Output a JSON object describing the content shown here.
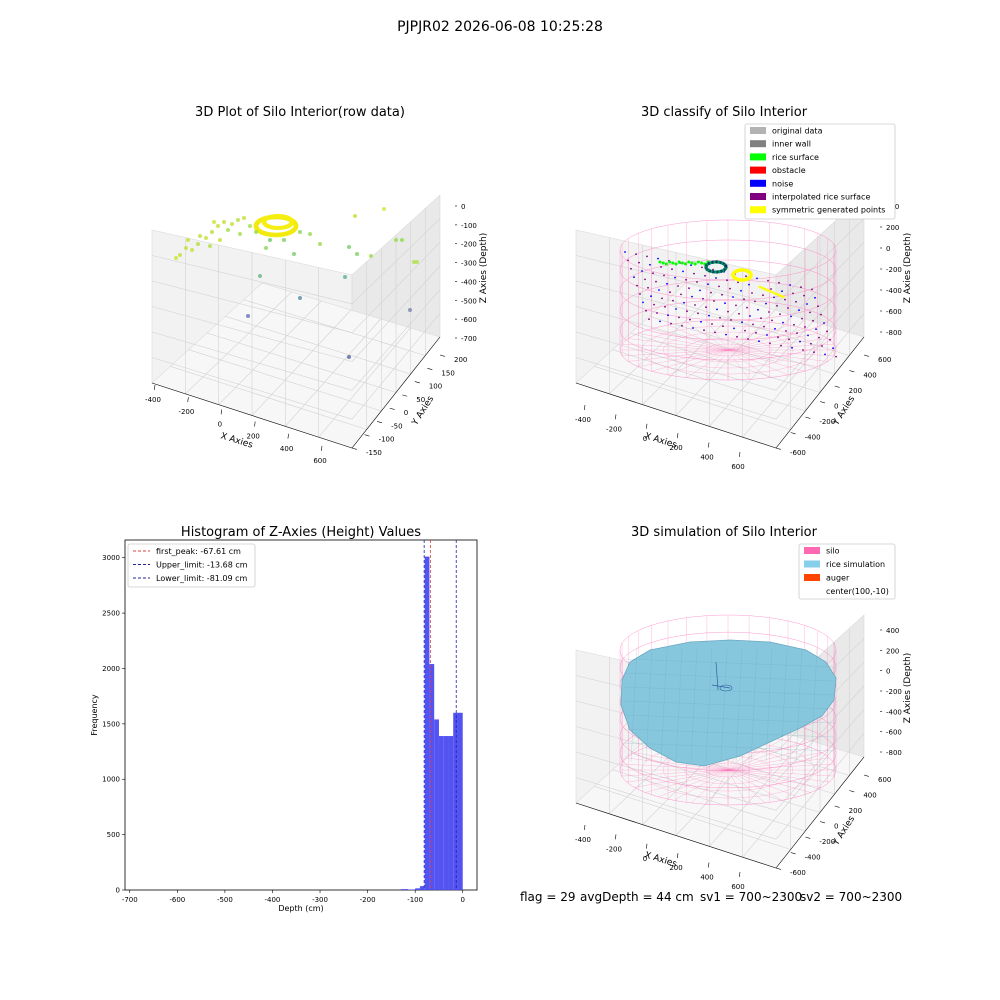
{
  "suptitle": "PJPJR02 2026-06-08 10:25:28",
  "chart_data": [
    {
      "type": "scatter",
      "title": "3D Plot of Silo Interior(row data)",
      "xlabel": "X Axies",
      "ylabel": "Y Axies",
      "zlabel": "Z Axies (Depth)",
      "xticks": [
        "-400",
        "-200",
        "0",
        "200",
        "400",
        "600"
      ],
      "yticks": [
        "-150",
        "-100",
        "-50",
        "0",
        "50",
        "100",
        "150",
        "200"
      ],
      "zticks": [
        "0",
        "-100",
        "-200",
        "-300",
        "-400",
        "-500",
        "-600",
        "-700"
      ],
      "grid": true
    },
    {
      "type": "scatter",
      "title": "3D classify of Silo Interior",
      "xlabel": "X Axies",
      "ylabel": "Y Axies",
      "zlabel": "Z Axies (Depth)",
      "xticks": [
        "-400",
        "-200",
        "0",
        "200",
        "400",
        "600"
      ],
      "yticks": [
        "-600",
        "-400",
        "-200",
        "0",
        "200",
        "400",
        "600"
      ],
      "zticks": [
        "200",
        "200",
        "0",
        "-200",
        "-400",
        "-600",
        "-800"
      ],
      "legend_position": "top-right",
      "legend": [
        {
          "label": "original data",
          "color": "#b3b3b3"
        },
        {
          "label": "inner wall",
          "color": "#808080"
        },
        {
          "label": "rice surface",
          "color": "#00ff00"
        },
        {
          "label": "obstacle",
          "color": "#ff0000"
        },
        {
          "label": "noise",
          "color": "#0000ff"
        },
        {
          "label": "interpolated rice surface",
          "color": "#800080"
        },
        {
          "label": "symmetric generated points",
          "color": "#ffff00"
        }
      ],
      "grid": true
    },
    {
      "type": "bar",
      "title": "Histogram of Z-Axies (Height) Values",
      "xlabel": "Depth (cm)",
      "ylabel": "Frequency",
      "xlim": [
        -710,
        30
      ],
      "ylim": [
        0,
        3160
      ],
      "xticks": [
        -700,
        -600,
        -500,
        -400,
        -300,
        -200,
        -100,
        0
      ],
      "yticks": [
        0,
        500,
        1000,
        1500,
        2000,
        2500,
        3000
      ],
      "bins": [
        {
          "x0": -130,
          "x1": -115,
          "value": 8
        },
        {
          "x0": -115,
          "x1": -100,
          "value": 4
        },
        {
          "x0": -100,
          "x1": -90,
          "value": 15
        },
        {
          "x0": -90,
          "x1": -80,
          "value": 35
        },
        {
          "x0": -80,
          "x1": -70,
          "value": 3010
        },
        {
          "x0": -70,
          "x1": -60,
          "value": 2040
        },
        {
          "x0": -60,
          "x1": -50,
          "value": 1540
        },
        {
          "x0": -50,
          "x1": -40,
          "value": 1390
        },
        {
          "x0": -40,
          "x1": -30,
          "value": 1390
        },
        {
          "x0": -30,
          "x1": -20,
          "value": 1390
        },
        {
          "x0": -20,
          "x1": -10,
          "value": 1600
        },
        {
          "x0": -10,
          "x1": 0,
          "value": 1600
        }
      ],
      "bar_color": "#4a4af0",
      "vlines": [
        {
          "label": "first_peak: -67.61 cm",
          "x": -67.61,
          "color": "#e04040"
        },
        {
          "label": "Upper_limit: -13.68 cm",
          "x": -13.68,
          "color": "#2020a0"
        },
        {
          "label": "Lower_limit: -81.09 cm",
          "x": -81.09,
          "color": "#2020a0"
        }
      ],
      "legend_position": "top-left"
    },
    {
      "type": "surface",
      "title": "3D simulation of Silo Interior",
      "xlabel": "X Axies",
      "ylabel": "Y Axies",
      "zlabel": "Z Axies (Depth)",
      "xticks": [
        "-400",
        "-200",
        "0",
        "200",
        "400",
        "600"
      ],
      "yticks": [
        "-600",
        "-400",
        "-200",
        "0",
        "200",
        "400",
        "600"
      ],
      "zticks": [
        "400",
        "200",
        "0",
        "-200",
        "-400",
        "-600",
        "-800"
      ],
      "legend_position": "top-right",
      "legend": [
        {
          "label": "silo",
          "color": "#ff69b4"
        },
        {
          "label": "rice simulation",
          "color": "#87ceeb"
        },
        {
          "label": "auger",
          "color": "#ff4500"
        },
        {
          "label": "center(100,-10)",
          "color": "none"
        }
      ],
      "grid": true
    }
  ],
  "footer": {
    "flag": "flag = 29",
    "avg_depth": "avgDepth = 44 cm",
    "sv1": "sv1 = 700~2300",
    "sv2": "sv2 = 700~2300"
  }
}
